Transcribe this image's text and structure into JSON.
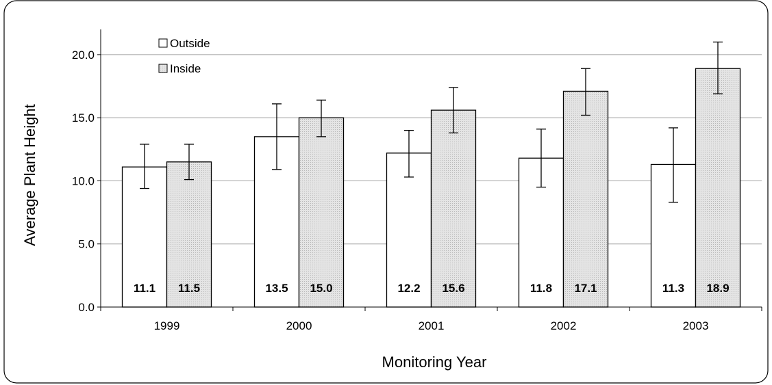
{
  "chart_data": {
    "type": "bar",
    "title": "",
    "xlabel": "Monitoring Year",
    "ylabel": "Average Plant Height",
    "ylim": [
      0,
      22
    ],
    "yticks": [
      "0.0",
      "5.0",
      "10.0",
      "15.0",
      "20.0"
    ],
    "ytick_values": [
      0,
      5,
      10,
      15,
      20
    ],
    "grid": true,
    "legend_position": "top-left",
    "categories": [
      "1999",
      "2000",
      "2001",
      "2002",
      "2003"
    ],
    "series": [
      {
        "name": "Outside",
        "color": "#ffffff",
        "values": [
          11.1,
          13.5,
          12.2,
          11.8,
          11.3
        ],
        "labels": [
          "11.1",
          "13.5",
          "12.2",
          "11.8",
          "11.3"
        ],
        "err_low": [
          9.4,
          10.9,
          10.3,
          9.5,
          8.3
        ],
        "err_high": [
          12.9,
          16.1,
          14.0,
          14.1,
          14.2
        ]
      },
      {
        "name": "Inside",
        "color": "#e0e0e0",
        "values": [
          11.5,
          15.0,
          15.6,
          17.1,
          18.9
        ],
        "labels": [
          "11.5",
          "15.0",
          "15.6",
          "17.1",
          "18.9"
        ],
        "err_low": [
          10.1,
          13.5,
          13.8,
          15.2,
          16.9
        ],
        "err_high": [
          12.9,
          16.4,
          17.4,
          18.9,
          21.0
        ]
      }
    ]
  }
}
